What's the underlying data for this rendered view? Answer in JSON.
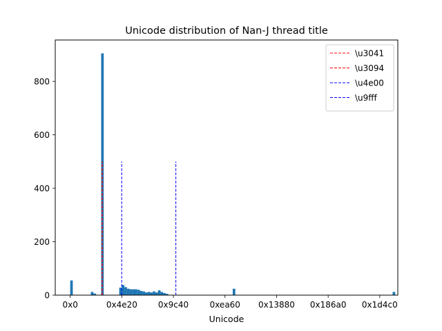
{
  "chart_data": {
    "type": "bar",
    "title": "Unicode distribution of Nan-J thread title",
    "xlabel": "Unicode",
    "ylabel": "",
    "xlim": [
      -5800,
      127000
    ],
    "ylim": [
      0,
      955
    ],
    "bar_color": "#1f77b4",
    "bin_width": 1000,
    "xticks": [
      {
        "value": 0,
        "label": "0x0"
      },
      {
        "value": 20000,
        "label": "0x4e20"
      },
      {
        "value": 40000,
        "label": "0x9c40"
      },
      {
        "value": 60000,
        "label": "0xea60"
      },
      {
        "value": 80000,
        "label": "0x13880"
      },
      {
        "value": 100000,
        "label": "0x186a0"
      },
      {
        "value": 120000,
        "label": "0x1d4c0"
      }
    ],
    "yticks": [
      0,
      200,
      400,
      600,
      800
    ],
    "bins": [
      {
        "x": 0,
        "count": 55
      },
      {
        "x": 8000,
        "count": 12
      },
      {
        "x": 9000,
        "count": 6
      },
      {
        "x": 12000,
        "count": 905
      },
      {
        "x": 19000,
        "count": 28
      },
      {
        "x": 20000,
        "count": 38
      },
      {
        "x": 21000,
        "count": 30
      },
      {
        "x": 22000,
        "count": 24
      },
      {
        "x": 23000,
        "count": 22
      },
      {
        "x": 24000,
        "count": 22
      },
      {
        "x": 25000,
        "count": 22
      },
      {
        "x": 26000,
        "count": 20
      },
      {
        "x": 27000,
        "count": 16
      },
      {
        "x": 28000,
        "count": 14
      },
      {
        "x": 29000,
        "count": 10
      },
      {
        "x": 30000,
        "count": 12
      },
      {
        "x": 31000,
        "count": 10
      },
      {
        "x": 32000,
        "count": 14
      },
      {
        "x": 33000,
        "count": 10
      },
      {
        "x": 34000,
        "count": 18
      },
      {
        "x": 35000,
        "count": 12
      },
      {
        "x": 36000,
        "count": 8
      },
      {
        "x": 37000,
        "count": 5
      },
      {
        "x": 63000,
        "count": 24
      },
      {
        "x": 125000,
        "count": 12
      }
    ],
    "reference_lines": [
      {
        "label": "\\u3041",
        "x": 12353,
        "ymax": 500,
        "color": "#ff0000"
      },
      {
        "label": "\\u3094",
        "x": 12436,
        "ymax": 500,
        "color": "#ff0000"
      },
      {
        "label": "\\u4e00",
        "x": 19968,
        "ymax": 500,
        "color": "#0000ff"
      },
      {
        "label": "\\u9fff",
        "x": 40959,
        "ymax": 500,
        "color": "#0000ff"
      }
    ],
    "legend_position": "upper-right",
    "grid": false
  }
}
